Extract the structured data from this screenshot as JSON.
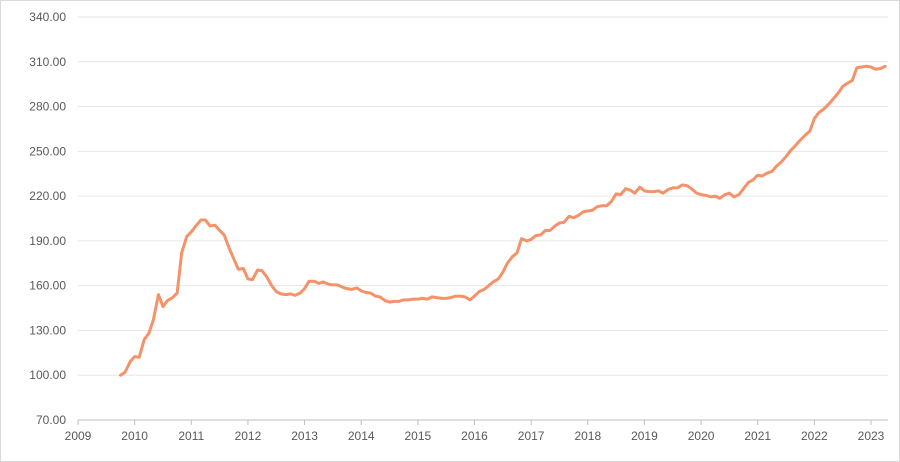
{
  "chart_data": {
    "type": "line",
    "title": "",
    "xlabel": "",
    "ylabel": "",
    "xlim": [
      2009,
      2023.3
    ],
    "ylim": [
      70,
      340
    ],
    "x_ticks": [
      "2009",
      "2010",
      "2011",
      "2012",
      "2013",
      "2014",
      "2015",
      "2016",
      "2017",
      "2018",
      "2019",
      "2020",
      "2021",
      "2022",
      "2023"
    ],
    "y_ticks": [
      "70.00",
      "100.00",
      "130.00",
      "160.00",
      "190.00",
      "220.00",
      "250.00",
      "280.00",
      "310.00",
      "340.00"
    ],
    "grid": true,
    "color": "#f4926a",
    "series": [
      {
        "points": [
          [
            2009.75,
            100
          ],
          [
            2009.83,
            102
          ],
          [
            2009.92,
            109
          ],
          [
            2010.0,
            112.5
          ],
          [
            2010.08,
            112
          ],
          [
            2010.17,
            124
          ],
          [
            2010.25,
            128
          ],
          [
            2010.33,
            137
          ],
          [
            2010.42,
            154
          ],
          [
            2010.5,
            146
          ],
          [
            2010.58,
            150
          ],
          [
            2010.67,
            152
          ],
          [
            2010.75,
            155
          ],
          [
            2010.83,
            182
          ],
          [
            2010.92,
            193
          ],
          [
            2011.0,
            196
          ],
          [
            2011.08,
            200
          ],
          [
            2011.17,
            204
          ],
          [
            2011.25,
            204
          ],
          [
            2011.33,
            200
          ],
          [
            2011.42,
            200.5
          ],
          [
            2011.5,
            197
          ],
          [
            2011.58,
            194
          ],
          [
            2011.67,
            185
          ],
          [
            2011.75,
            178
          ],
          [
            2011.83,
            171
          ],
          [
            2011.92,
            171.5
          ],
          [
            2012.0,
            164.5
          ],
          [
            2012.08,
            164
          ],
          [
            2012.17,
            170.5
          ],
          [
            2012.25,
            170
          ],
          [
            2012.33,
            166
          ],
          [
            2012.42,
            160
          ],
          [
            2012.5,
            156
          ],
          [
            2012.58,
            154.5
          ],
          [
            2012.67,
            154
          ],
          [
            2012.75,
            154.5
          ],
          [
            2012.83,
            153.5
          ],
          [
            2012.92,
            155
          ],
          [
            2013.0,
            158
          ],
          [
            2013.08,
            163
          ],
          [
            2013.17,
            163
          ],
          [
            2013.25,
            161.5
          ],
          [
            2013.33,
            162.5
          ],
          [
            2013.42,
            161
          ],
          [
            2013.5,
            160.5
          ],
          [
            2013.58,
            160.5
          ],
          [
            2013.67,
            159
          ],
          [
            2013.75,
            158
          ],
          [
            2013.83,
            157.5
          ],
          [
            2013.92,
            158.5
          ],
          [
            2014.0,
            156.5
          ],
          [
            2014.08,
            155.5
          ],
          [
            2014.17,
            155
          ],
          [
            2014.25,
            153
          ],
          [
            2014.33,
            152.5
          ],
          [
            2014.42,
            150
          ],
          [
            2014.5,
            149
          ],
          [
            2014.58,
            149.5
          ],
          [
            2014.67,
            149.5
          ],
          [
            2014.75,
            150.5
          ],
          [
            2014.83,
            150.5
          ],
          [
            2014.92,
            151
          ],
          [
            2015.0,
            151
          ],
          [
            2015.08,
            151.5
          ],
          [
            2015.17,
            151
          ],
          [
            2015.25,
            152.5
          ],
          [
            2015.33,
            152
          ],
          [
            2015.42,
            151.5
          ],
          [
            2015.5,
            151.5
          ],
          [
            2015.58,
            152
          ],
          [
            2015.67,
            153
          ],
          [
            2015.75,
            153
          ],
          [
            2015.83,
            152.5
          ],
          [
            2015.92,
            150.5
          ],
          [
            2016.0,
            153
          ],
          [
            2016.08,
            156
          ],
          [
            2016.17,
            157.5
          ],
          [
            2016.25,
            160
          ],
          [
            2016.33,
            162.5
          ],
          [
            2016.42,
            164.5
          ],
          [
            2016.5,
            169
          ],
          [
            2016.58,
            175
          ],
          [
            2016.67,
            179.5
          ],
          [
            2016.75,
            182
          ],
          [
            2016.83,
            191.5
          ],
          [
            2016.92,
            190
          ],
          [
            2017.0,
            191
          ],
          [
            2017.08,
            193.5
          ],
          [
            2017.17,
            194
          ],
          [
            2017.25,
            197
          ],
          [
            2017.33,
            197
          ],
          [
            2017.42,
            200
          ],
          [
            2017.5,
            202
          ],
          [
            2017.58,
            202.5
          ],
          [
            2017.67,
            206.5
          ],
          [
            2017.75,
            205.5
          ],
          [
            2017.83,
            207
          ],
          [
            2017.92,
            209.5
          ],
          [
            2018.0,
            210
          ],
          [
            2018.08,
            210.5
          ],
          [
            2018.17,
            213
          ],
          [
            2018.25,
            213.5
          ],
          [
            2018.33,
            213.5
          ],
          [
            2018.42,
            216.5
          ],
          [
            2018.5,
            221.5
          ],
          [
            2018.58,
            221
          ],
          [
            2018.67,
            225
          ],
          [
            2018.75,
            224
          ],
          [
            2018.83,
            222
          ],
          [
            2018.92,
            226
          ],
          [
            2019.0,
            223.5
          ],
          [
            2019.08,
            223
          ],
          [
            2019.17,
            223
          ],
          [
            2019.25,
            223.5
          ],
          [
            2019.33,
            222
          ],
          [
            2019.42,
            224.5
          ],
          [
            2019.5,
            225.5
          ],
          [
            2019.58,
            225.5
          ],
          [
            2019.67,
            227.5
          ],
          [
            2019.75,
            227
          ],
          [
            2019.83,
            225
          ],
          [
            2019.92,
            222
          ],
          [
            2020.0,
            221
          ],
          [
            2020.08,
            220.5
          ],
          [
            2020.17,
            219.5
          ],
          [
            2020.25,
            220
          ],
          [
            2020.33,
            218.5
          ],
          [
            2020.42,
            221
          ],
          [
            2020.5,
            222
          ],
          [
            2020.58,
            219.5
          ],
          [
            2020.67,
            221
          ],
          [
            2020.75,
            225
          ],
          [
            2020.83,
            229
          ],
          [
            2020.92,
            231
          ],
          [
            2021.0,
            234
          ],
          [
            2021.08,
            233.5
          ],
          [
            2021.17,
            235.5
          ],
          [
            2021.25,
            236.5
          ],
          [
            2021.33,
            240
          ],
          [
            2021.42,
            243
          ],
          [
            2021.5,
            246.5
          ],
          [
            2021.58,
            250.5
          ],
          [
            2021.67,
            254
          ],
          [
            2021.75,
            257.5
          ],
          [
            2021.83,
            260.5
          ],
          [
            2021.92,
            263.5
          ],
          [
            2022.0,
            272
          ],
          [
            2022.08,
            276
          ],
          [
            2022.17,
            278.5
          ],
          [
            2022.25,
            281.5
          ],
          [
            2022.33,
            285
          ],
          [
            2022.42,
            289
          ],
          [
            2022.5,
            293.5
          ],
          [
            2022.58,
            295.5
          ],
          [
            2022.67,
            297.5
          ],
          [
            2022.75,
            306
          ],
          [
            2022.83,
            306.5
          ],
          [
            2022.92,
            307
          ],
          [
            2023.0,
            306.5
          ],
          [
            2023.08,
            305
          ],
          [
            2023.17,
            305.5
          ],
          [
            2023.25,
            307
          ]
        ]
      }
    ]
  }
}
